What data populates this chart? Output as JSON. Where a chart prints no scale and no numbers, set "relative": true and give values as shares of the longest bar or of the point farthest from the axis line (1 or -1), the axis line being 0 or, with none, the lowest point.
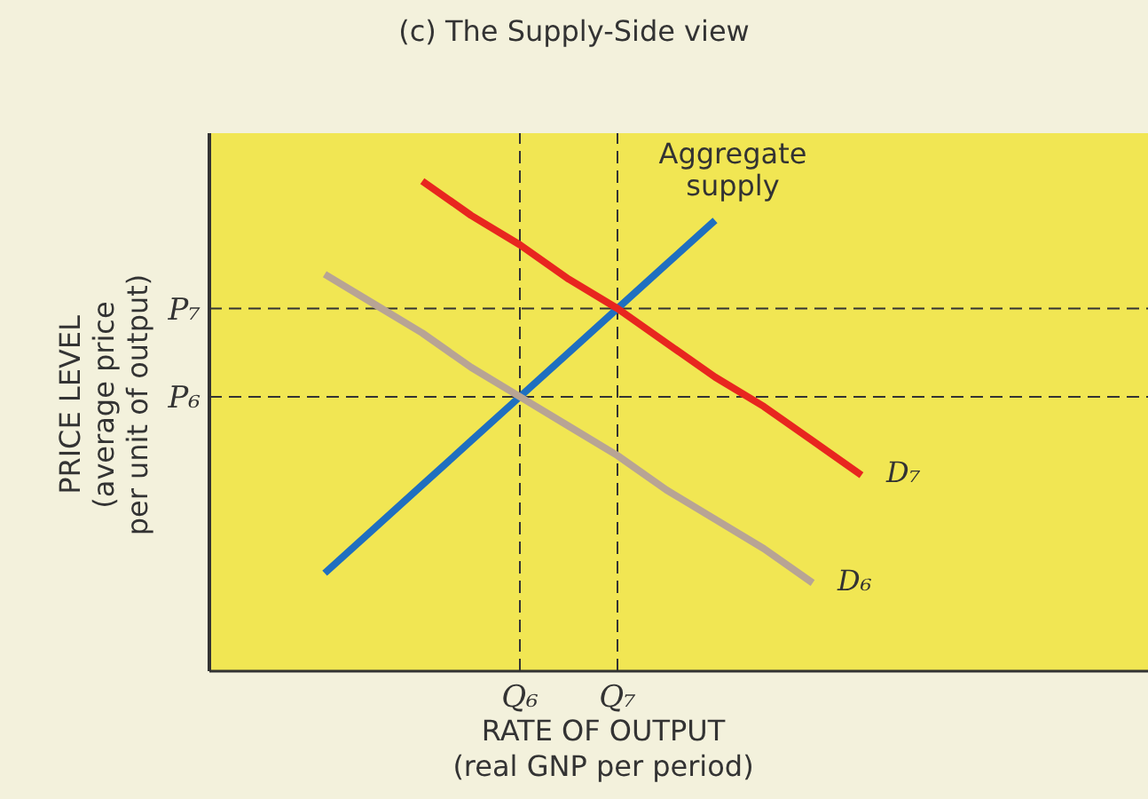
{
  "chart_data": {
    "type": "line",
    "title": "(c) The Supply-Side view",
    "xlabel": "RATE OF OUTPUT\n(real GNP per period)",
    "ylabel": "PRICE LEVEL\n(average price\nper unit of output)",
    "relative": true,
    "categories": [
      null,
      null,
      null,
      null,
      null,
      null,
      "Q₆",
      null,
      "Q₇",
      null,
      null,
      null,
      null,
      null,
      null,
      null,
      null,
      null,
      null
    ],
    "series": [
      {
        "name": "Aggregate supply",
        "color": "#1f6fc0",
        "values": [
          null,
          null,
          0.2,
          0.29,
          0.38,
          0.47,
          0.56,
          0.65,
          0.74,
          0.83,
          0.92,
          null,
          null,
          null,
          null,
          null,
          null,
          null,
          null
        ]
      },
      {
        "name": "D₇",
        "color": "#e8261f",
        "values": [
          null,
          null,
          null,
          null,
          1.0,
          0.93,
          0.87,
          0.8,
          0.74,
          0.67,
          0.6,
          0.54,
          0.47,
          0.4,
          null,
          null,
          null,
          null,
          null
        ]
      },
      {
        "name": "D₆",
        "color": "#b8a494",
        "values": [
          null,
          null,
          0.81,
          0.75,
          0.69,
          0.62,
          0.56,
          0.5,
          0.44,
          0.37,
          0.31,
          0.25,
          0.18,
          null,
          null,
          null,
          null,
          null,
          null
        ]
      }
    ],
    "ref_lines": [
      {
        "axis": "y",
        "value": 0.56,
        "label": "P₆",
        "line_style": "dashed"
      },
      {
        "axis": "y",
        "value": 0.74,
        "label": "P₇",
        "line_style": "dashed"
      },
      {
        "axis": "x",
        "value": "Q₆",
        "line_style": "dashed"
      },
      {
        "axis": "x",
        "value": "Q₇",
        "line_style": "dashed"
      }
    ],
    "grid": false,
    "marker": "none",
    "line_style": "solid"
  }
}
